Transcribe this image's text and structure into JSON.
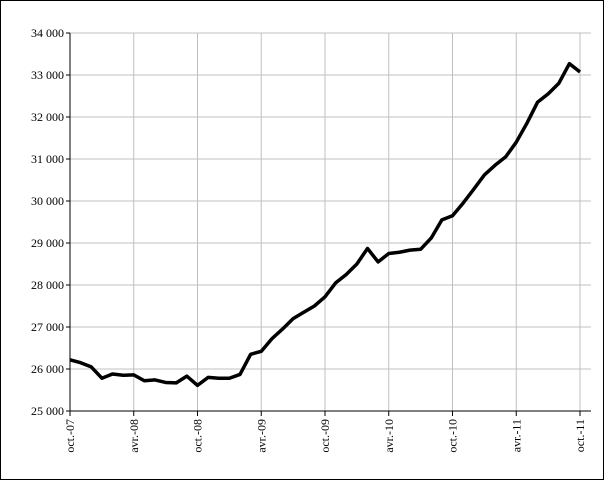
{
  "chart_data": {
    "type": "line",
    "categories": [
      "oct.-07",
      null,
      null,
      null,
      null,
      null,
      "avr.-08",
      null,
      null,
      null,
      null,
      null,
      "oct.-08",
      null,
      null,
      null,
      null,
      null,
      "avr.-09",
      null,
      null,
      null,
      null,
      null,
      "oct.-09",
      null,
      null,
      null,
      null,
      null,
      "avr.-10",
      null,
      null,
      null,
      null,
      null,
      "oct.-10",
      null,
      null,
      null,
      null,
      null,
      "avr.-11",
      null,
      null,
      null,
      null,
      null,
      "oct.-11"
    ],
    "series": [
      {
        "color": "#000000",
        "values": [
          26220,
          26150,
          26050,
          25780,
          25880,
          25850,
          25860,
          25720,
          25740,
          25680,
          25670,
          25830,
          25610,
          25800,
          25780,
          25780,
          25870,
          26350,
          26420,
          26720,
          26950,
          27200,
          27350,
          27500,
          27720,
          28050,
          28250,
          28500,
          28870,
          28550,
          28750,
          28780,
          28830,
          28850,
          29120,
          29550,
          29650,
          29950,
          30280,
          30620,
          30850,
          31050,
          31400,
          31850,
          32350,
          32550,
          32800,
          33270,
          33070
        ]
      }
    ],
    "ylim": [
      25000,
      34000
    ],
    "yticks": [
      {
        "value": 25000,
        "label": "25 000"
      },
      {
        "value": 26000,
        "label": "26 000"
      },
      {
        "value": 27000,
        "label": "27 000"
      },
      {
        "value": 28000,
        "label": "28 000"
      },
      {
        "value": 29000,
        "label": "29 000"
      },
      {
        "value": 30000,
        "label": "30 000"
      },
      {
        "value": 31000,
        "label": "31 000"
      },
      {
        "value": 32000,
        "label": "32 000"
      },
      {
        "value": 33000,
        "label": "33 000"
      },
      {
        "value": 34000,
        "label": "34 000"
      }
    ],
    "grid": true
  }
}
